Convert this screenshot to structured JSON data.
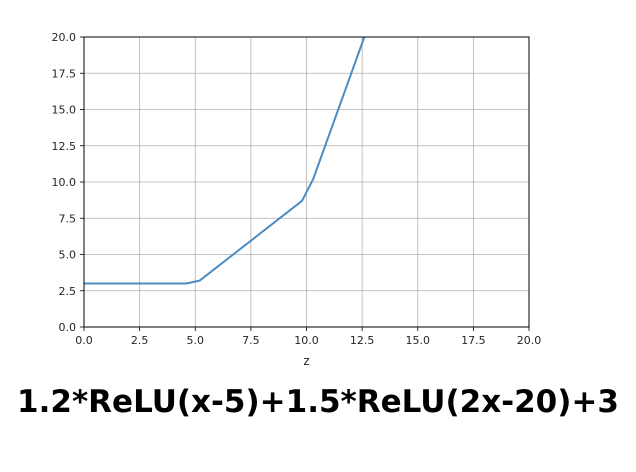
{
  "chart_data": {
    "type": "line",
    "title": "",
    "xlabel": "z",
    "ylabel": "",
    "xlim": [
      0,
      20
    ],
    "ylim": [
      0,
      20
    ],
    "grid": true,
    "x_ticks": [
      "0.0",
      "2.5",
      "5.0",
      "7.5",
      "10.0",
      "12.5",
      "15.0",
      "17.5",
      "20.0"
    ],
    "y_ticks": [
      "0.0",
      "2.5",
      "5.0",
      "7.5",
      "10.0",
      "12.5",
      "15.0",
      "17.5",
      "20.0"
    ],
    "series": [
      {
        "color": "#4c8cc4",
        "x": [
          0,
          4.6,
          5.2,
          9.8,
          10.3,
          12.6
        ],
        "y": [
          3.0,
          3.0,
          3.2,
          8.7,
          10.2,
          20.0
        ]
      }
    ]
  },
  "caption": "1.2*ReLU(x-5)+1.5*ReLU(2x-20)+3"
}
